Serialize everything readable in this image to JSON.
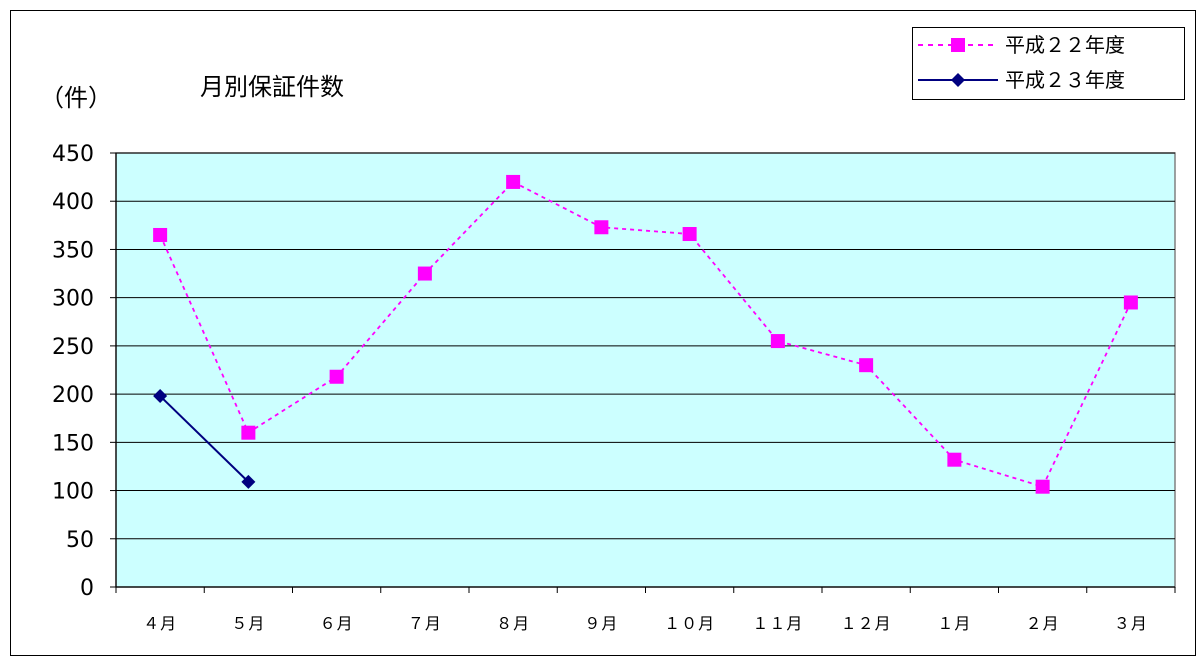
{
  "chart_data": {
    "type": "line",
    "title": "月別保証件数",
    "ylabel": "（件）",
    "xlabel": "",
    "categories": [
      "４月",
      "５月",
      "６月",
      "７月",
      "８月",
      "９月",
      "１０月",
      "１１月",
      "１２月",
      "１月",
      "２月",
      "３月"
    ],
    "ylim": [
      0,
      450
    ],
    "yticks": [
      0,
      50,
      100,
      150,
      200,
      250,
      300,
      350,
      400,
      450
    ],
    "grid": true,
    "legend_position": "top-right",
    "series": [
      {
        "name": "平成２２年度",
        "color": "#ff00ff",
        "line_style": "dotted",
        "marker": "square",
        "values": [
          365,
          160,
          218,
          325,
          420,
          373,
          366,
          255,
          230,
          132,
          104,
          295
        ]
      },
      {
        "name": "平成２３年度",
        "color": "#000080",
        "line_style": "solid",
        "marker": "diamond",
        "values": [
          198,
          109,
          null,
          null,
          null,
          null,
          null,
          null,
          null,
          null,
          null,
          null
        ]
      }
    ],
    "plot_background": "#ccffff"
  }
}
